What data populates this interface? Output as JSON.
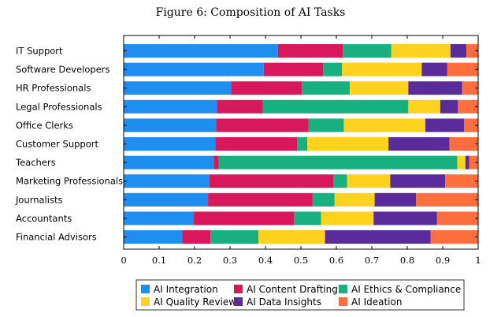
{
  "chart_data": {
    "type": "bar",
    "orientation": "horizontal",
    "stacked": true,
    "title": "Figure 6: Composition of AI Tasks",
    "xlabel": "",
    "ylabel": "",
    "xlim": [
      0,
      1
    ],
    "x_ticks": [
      "0",
      "0.1",
      "0.2",
      "0.3",
      "0.4",
      "0.5",
      "0.6",
      "0.7",
      "0.8",
      "0.9",
      "1"
    ],
    "categories": [
      "IT Support",
      "Software Developers",
      "HR Professionals",
      "Legal Professionals",
      "Office Clerks",
      "Customer Support",
      "Teachers",
      "Marketing Professionals",
      "Journalists",
      "Accountants",
      "Financial Advisors"
    ],
    "series": [
      {
        "name": "AI Integration",
        "color": "#1f8ef1",
        "values": [
          0.435,
          0.395,
          0.303,
          0.263,
          0.261,
          0.259,
          0.254,
          0.242,
          0.238,
          0.198,
          0.165
        ]
      },
      {
        "name": "AI Content Drafting",
        "color": "#d8185a",
        "values": [
          0.183,
          0.168,
          0.2,
          0.13,
          0.26,
          0.23,
          0.014,
          0.35,
          0.295,
          0.282,
          0.08
        ]
      },
      {
        "name": "AI Ethics & Compliance",
        "color": "#17b07e",
        "values": [
          0.137,
          0.053,
          0.135,
          0.41,
          0.1,
          0.029,
          0.673,
          0.038,
          0.062,
          0.077,
          0.135
        ]
      },
      {
        "name": "AI Quality Review",
        "color": "#ffd21e",
        "values": [
          0.167,
          0.225,
          0.165,
          0.09,
          0.23,
          0.229,
          0.023,
          0.122,
          0.113,
          0.148,
          0.188
        ]
      },
      {
        "name": "AI Data Insights",
        "color": "#5a2b9a",
        "values": [
          0.045,
          0.072,
          0.152,
          0.05,
          0.109,
          0.172,
          0.011,
          0.155,
          0.117,
          0.179,
          0.298
        ]
      },
      {
        "name": "AI Ideation",
        "color": "#ff6e3c",
        "values": [
          0.033,
          0.087,
          0.045,
          0.057,
          0.04,
          0.081,
          0.025,
          0.093,
          0.175,
          0.116,
          0.134
        ]
      }
    ],
    "grid": false,
    "legend_position": "bottom"
  }
}
